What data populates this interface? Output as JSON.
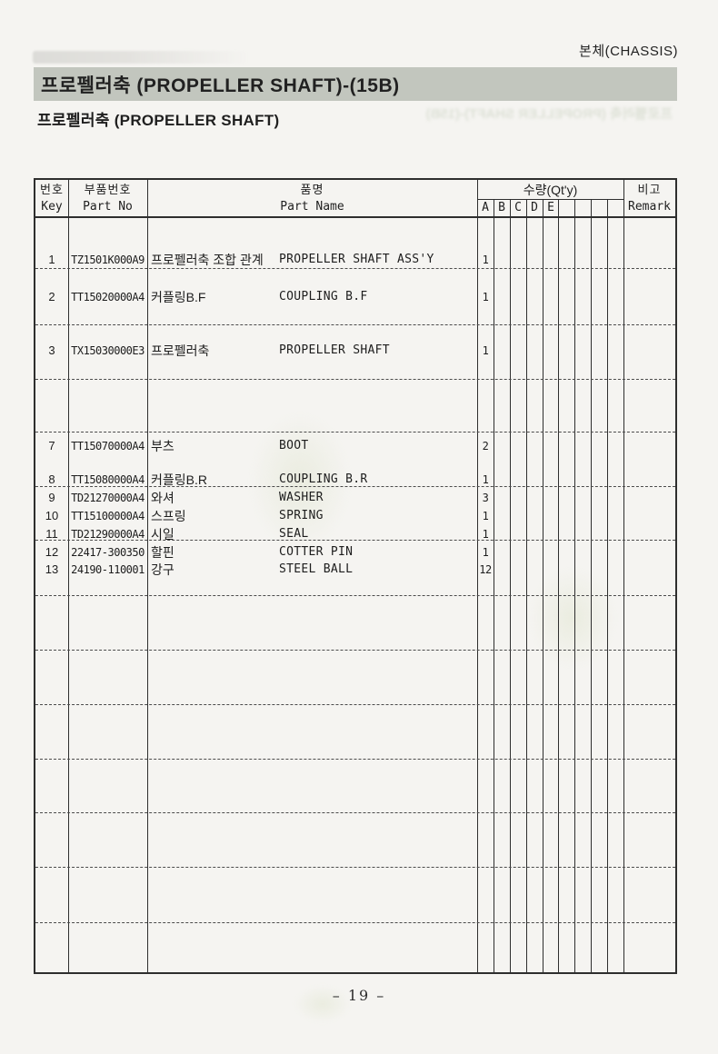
{
  "page": {
    "corner_label": "본체(CHASSIS)",
    "title": "프로펠러축 (PROPELLER SHAFT)-(15B)",
    "subtitle": "프로펠러축 (PROPELLER SHAFT)",
    "page_number": "– 19 –"
  },
  "table": {
    "headers": {
      "key_kr": "번호",
      "key_en": "Key",
      "part_no_kr": "부품번호",
      "part_no_en": "Part No",
      "name_kr": "품명",
      "name_en": "Part Name",
      "qty_label": "수량(Qt'y)",
      "qty_cols": [
        "A",
        "B",
        "C",
        "D",
        "E",
        "",
        "",
        "",
        ""
      ],
      "remark_kr": "비고",
      "remark_en": "Remark"
    },
    "rows": [
      {
        "key": "1",
        "part_no": "TZ1501K000A9",
        "name_kr": "프로펠러축 조합 관계",
        "name_en": "PROPELLER SHAFT ASS'Y",
        "qty_a": "1"
      },
      {
        "key": "2",
        "part_no": "TT15020000A4",
        "name_kr": "커플링B.F",
        "name_en": "COUPLING B.F",
        "qty_a": "1"
      },
      {
        "key": "3",
        "part_no": "TX15030000E3",
        "name_kr": "프로펠러축",
        "name_en": "PROPELLER SHAFT",
        "qty_a": "1"
      },
      {
        "key": "7",
        "part_no": "TT15070000A4",
        "name_kr": "부츠",
        "name_en": "BOOT",
        "qty_a": "2"
      },
      {
        "key": "8",
        "part_no": "TT15080000A4",
        "name_kr": "커플링B.R",
        "name_en": "COUPLING B.R",
        "qty_a": "1"
      },
      {
        "key": "9",
        "part_no": "TD21270000A4",
        "name_kr": "와셔",
        "name_en": "WASHER",
        "qty_a": "3"
      },
      {
        "key": "10",
        "part_no": "TT15100000A4",
        "name_kr": "스프링",
        "name_en": "SPRING",
        "qty_a": "1"
      },
      {
        "key": "11",
        "part_no": "TD21290000A4",
        "name_kr": "시일",
        "name_en": "SEAL",
        "qty_a": "1"
      },
      {
        "key": "12",
        "part_no": "22417-300350",
        "name_kr": "할핀",
        "name_en": "COTTER PIN",
        "qty_a": "1"
      },
      {
        "key": "13",
        "part_no": "24190-110001",
        "name_kr": "강구",
        "name_en": "STEEL BALL",
        "qty_a": "12"
      }
    ]
  },
  "colors": {
    "paper": "#f5f4f1",
    "title_bar_bg": "#c2c6be",
    "line": "#2e2e2e",
    "ink": "#262626"
  }
}
